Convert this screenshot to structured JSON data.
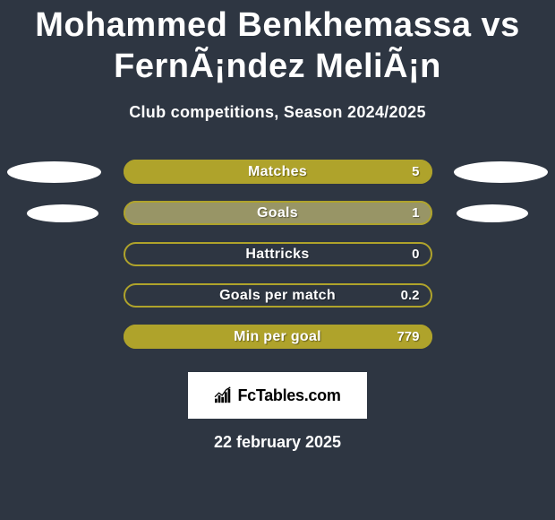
{
  "title": "Mohammed Benkhemassa vs FernÃ¡ndez MeliÃ¡n",
  "subtitle": "Club competitions, Season 2024/2025",
  "colors": {
    "accent": "#afa32b",
    "accent_soft": "#8b8a5a",
    "outline": "#afa32b",
    "bg": "#2e3642"
  },
  "stats": [
    {
      "label": "Matches",
      "value": "5",
      "fill_pct": 100,
      "fill_color": "#afa32b",
      "outline_color": "#afa32b",
      "left_ellipse": "large",
      "right_ellipse": "large"
    },
    {
      "label": "Goals",
      "value": "1",
      "fill_pct": 100,
      "fill_color": "#989566",
      "outline_color": "#afa32b",
      "left_ellipse": "small",
      "right_ellipse": "small"
    },
    {
      "label": "Hattricks",
      "value": "0",
      "fill_pct": 0,
      "fill_color": "#afa32b",
      "outline_color": "#afa32b",
      "left_ellipse": "none",
      "right_ellipse": "none"
    },
    {
      "label": "Goals per match",
      "value": "0.2",
      "fill_pct": 0,
      "fill_color": "#afa32b",
      "outline_color": "#afa32b",
      "left_ellipse": "none",
      "right_ellipse": "none"
    },
    {
      "label": "Min per goal",
      "value": "779",
      "fill_pct": 100,
      "fill_color": "#afa32b",
      "outline_color": "#afa32b",
      "left_ellipse": "none",
      "right_ellipse": "none"
    }
  ],
  "branding": "FcTables.com",
  "date": "22 february 2025"
}
